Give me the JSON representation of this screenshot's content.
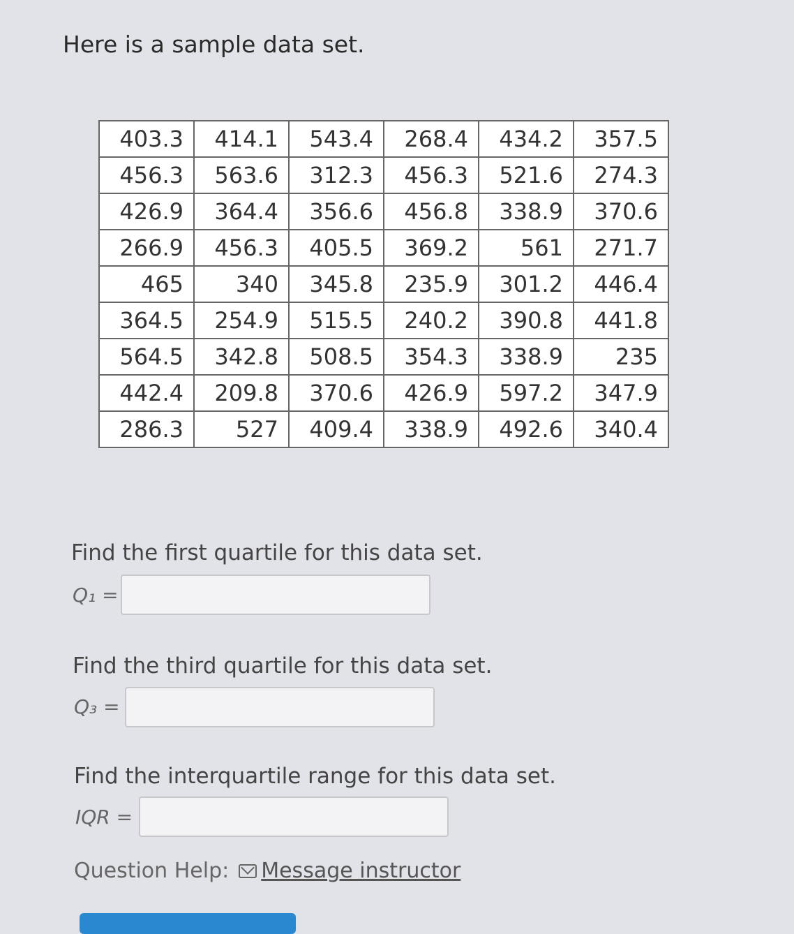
{
  "intro": "Here is a sample data set.",
  "table": [
    [
      "403.3",
      "414.1",
      "543.4",
      "268.4",
      "434.2",
      "357.5"
    ],
    [
      "456.3",
      "563.6",
      "312.3",
      "456.3",
      "521.6",
      "274.3"
    ],
    [
      "426.9",
      "364.4",
      "356.6",
      "456.8",
      "338.9",
      "370.6"
    ],
    [
      "266.9",
      "456.3",
      "405.5",
      "369.2",
      "561",
      "271.7"
    ],
    [
      "465",
      "340",
      "345.8",
      "235.9",
      "301.2",
      "446.4"
    ],
    [
      "364.5",
      "254.9",
      "515.5",
      "240.2",
      "390.8",
      "441.8"
    ],
    [
      "564.5",
      "342.8",
      "508.5",
      "354.3",
      "338.9",
      "235"
    ],
    [
      "442.4",
      "209.8",
      "370.6",
      "426.9",
      "597.2",
      "347.9"
    ],
    [
      "286.3",
      "527",
      "409.4",
      "338.9",
      "492.6",
      "340.4"
    ]
  ],
  "questions": [
    {
      "prompt": "Find the first quartile for this data set.",
      "label": "Q₁ =",
      "value": ""
    },
    {
      "prompt": "Find the third quartile for this data set.",
      "label": "Q₃ =",
      "value": ""
    },
    {
      "prompt": "Find the interquartile range for this data set.",
      "label": "IQR =",
      "value": ""
    }
  ],
  "help": {
    "label": "Question Help:",
    "link": "Message instructor",
    "icon": "envelope-icon"
  },
  "colors": {
    "button": "#2a88d0"
  }
}
